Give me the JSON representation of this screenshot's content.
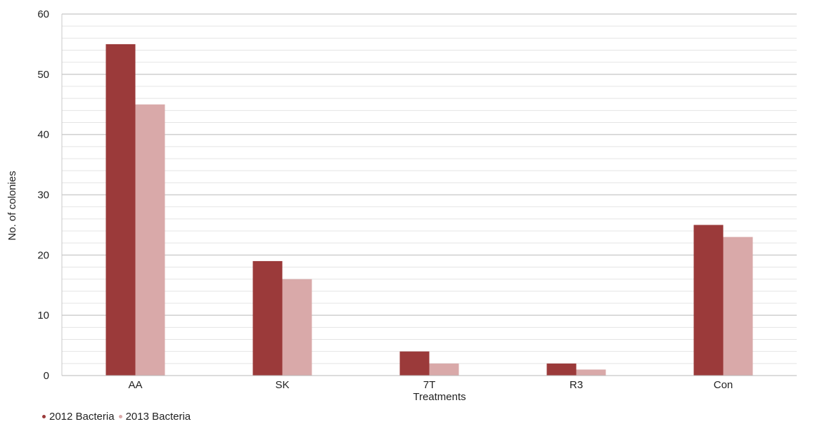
{
  "chart_data": {
    "type": "bar",
    "categories": [
      "AA",
      "SK",
      "7T",
      "R3",
      "Con"
    ],
    "series": [
      {
        "name": "2012 Bacteria",
        "values": [
          55,
          19,
          4,
          2,
          25
        ],
        "color": "#9b3a3a"
      },
      {
        "name": "2013 Bacteria",
        "values": [
          45,
          16,
          2,
          1,
          23
        ],
        "color": "#d9a9a9"
      }
    ],
    "xlabel": "Treatments",
    "ylabel": "No. of colonies",
    "ylim": [
      0,
      60
    ],
    "yticks": [
      "0",
      "10",
      "20",
      "30",
      "40",
      "50",
      "60"
    ],
    "grid": true,
    "legend_position": "bottom-left"
  }
}
